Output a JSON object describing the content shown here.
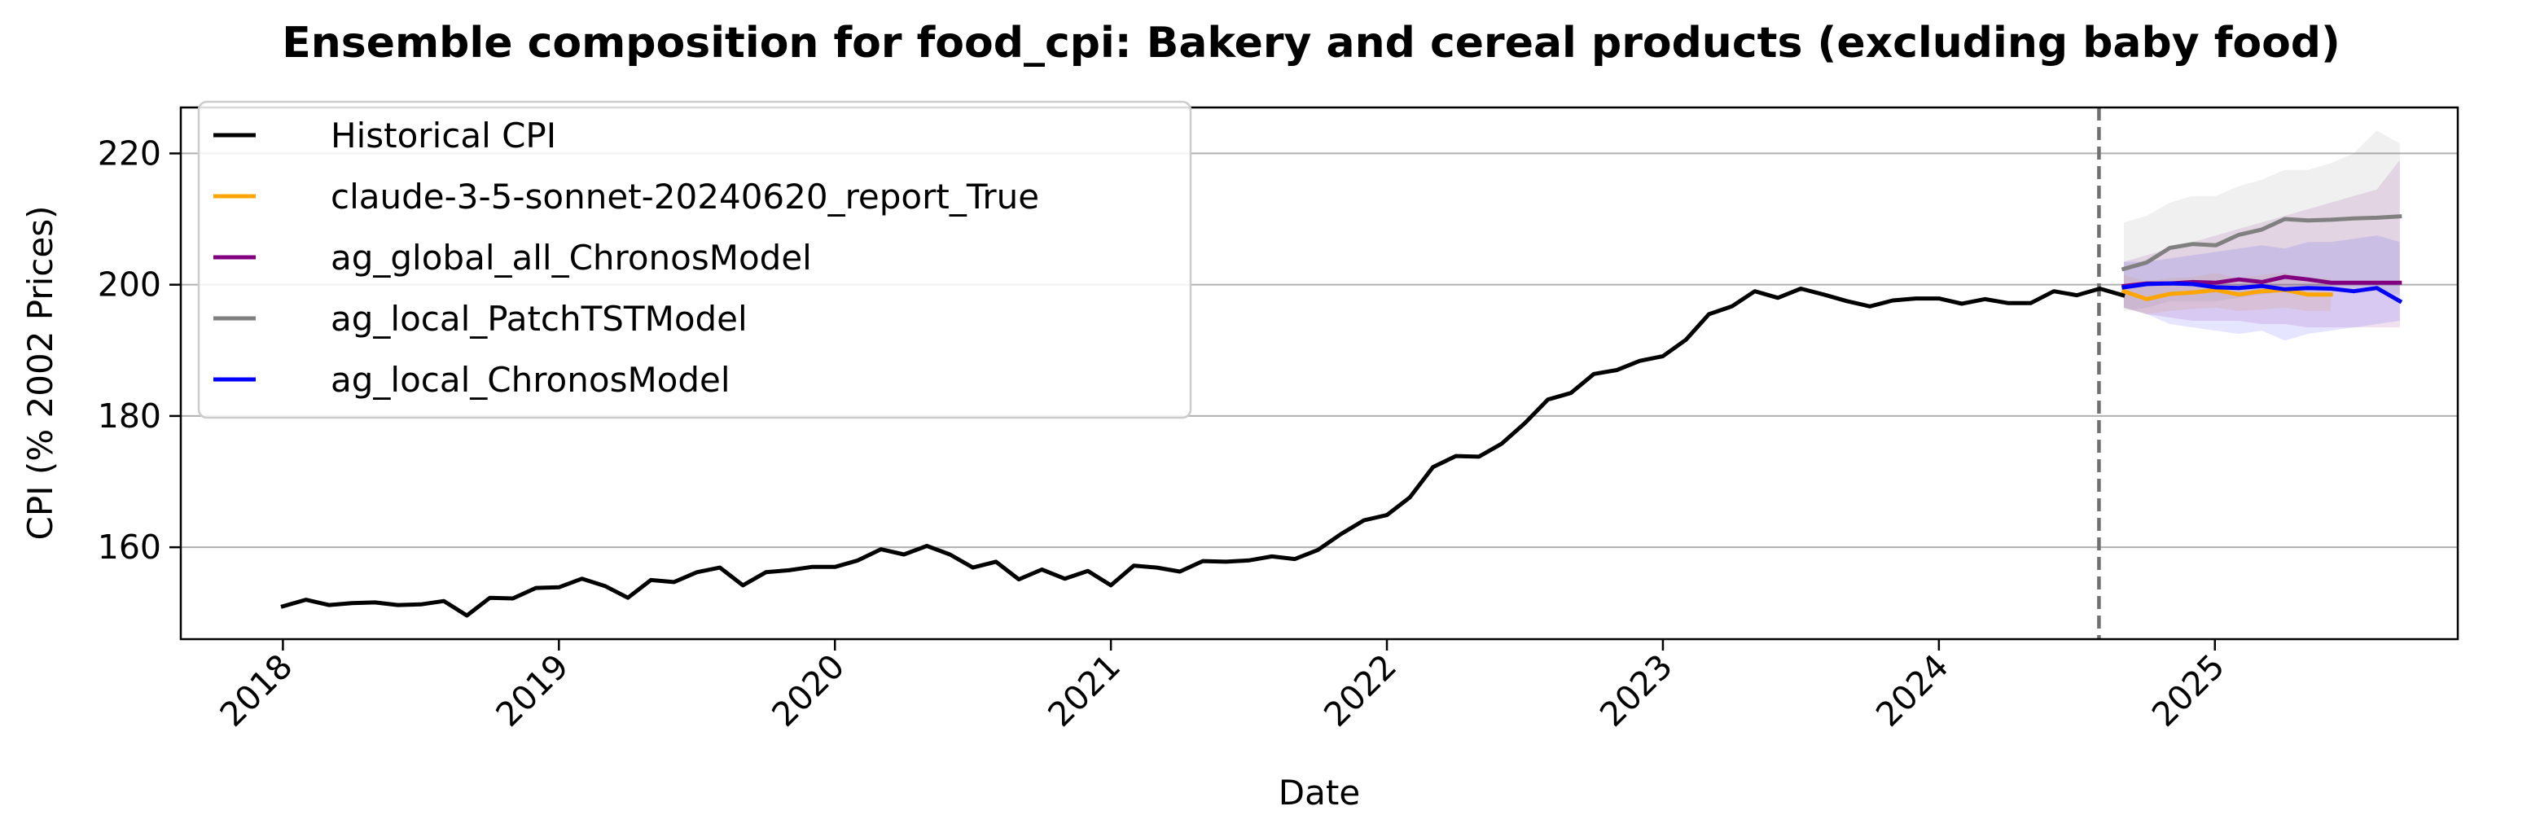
{
  "chart_data": {
    "type": "line",
    "title": "Ensemble composition for food_cpi: Bakery and cereal products (excluding baby food)",
    "xlabel": "Date",
    "ylabel": "CPI (% 2002 Prices)",
    "xlim": [
      2017.63,
      2025.88
    ],
    "ylim": [
      146.0,
      227.0
    ],
    "x_ticks": [
      2018,
      2019,
      2020,
      2021,
      2022,
      2023,
      2024,
      2025
    ],
    "x_tick_labels": [
      "2018",
      "2019",
      "2020",
      "2021",
      "2022",
      "2023",
      "2024",
      "2025"
    ],
    "y_ticks": [
      160,
      180,
      200,
      220
    ],
    "y_tick_labels": [
      "160",
      "180",
      "200",
      "220"
    ],
    "grid": "horizontal",
    "legend_location": "upper-left",
    "forecast_start": 2024.58,
    "series": [
      {
        "name": "Historical CPI",
        "color": "#000000",
        "x_start": 2018.0,
        "x_step": 0.08333,
        "values": [
          151.0,
          152.0,
          151.2,
          151.5,
          151.6,
          151.2,
          151.3,
          151.8,
          149.6,
          152.3,
          152.2,
          153.8,
          153.9,
          155.2,
          154.1,
          152.3,
          155.0,
          154.7,
          156.2,
          156.9,
          154.2,
          156.2,
          156.5,
          157.0,
          157.0,
          158.0,
          159.7,
          158.9,
          160.2,
          158.9,
          156.9,
          157.8,
          155.1,
          156.6,
          155.2,
          156.4,
          154.2,
          157.2,
          156.9,
          156.3,
          157.9,
          157.8,
          158.0,
          158.6,
          158.2,
          159.6,
          162.0,
          164.1,
          164.9,
          167.6,
          172.2,
          173.9,
          173.8,
          175.8,
          178.9,
          182.5,
          183.5,
          186.4,
          187.0,
          188.4,
          189.1,
          191.6,
          195.5,
          196.7,
          199.0,
          198.0,
          199.4,
          198.5,
          197.5,
          196.7,
          197.6,
          197.9,
          197.9,
          197.1,
          197.8,
          197.2,
          197.2,
          199.0,
          198.4,
          199.4,
          198.4
        ]
      },
      {
        "name": "claude-3-5-sonnet-20240620_report_True",
        "color": "#ffa500",
        "x_start": 2024.67,
        "x_step": 0.08333,
        "values": [
          199.0,
          197.8,
          198.6,
          198.8,
          199.2,
          198.5,
          199.0,
          199.2,
          198.5,
          198.5
        ],
        "band_lower": [
          196.5,
          195.5,
          196.0,
          196.3,
          196.5,
          196.0,
          196.2,
          196.5,
          196.0,
          196.0
        ],
        "band_upper": [
          201.5,
          200.5,
          201.0,
          201.2,
          201.8,
          201.0,
          201.5,
          201.8,
          201.0,
          201.0
        ]
      },
      {
        "name": "ag_global_all_ChronosModel",
        "color": "#800080",
        "x_start": 2024.67,
        "x_step": 0.08333,
        "values": [
          199.8,
          200.2,
          200.2,
          200.4,
          200.3,
          200.8,
          200.4,
          201.2,
          200.8,
          200.3,
          200.3,
          200.3,
          200.3
        ],
        "band_lower": [
          196.5,
          195.5,
          195.0,
          194.5,
          194.5,
          194.5,
          194.0,
          194.0,
          193.5,
          193.5,
          193.5,
          193.5,
          193.5
        ],
        "band_upper": [
          203.5,
          204.5,
          205.5,
          206.5,
          207.5,
          208.5,
          209.5,
          210.5,
          211.5,
          212.5,
          213.5,
          214.5,
          219.0
        ]
      },
      {
        "name": "ag_local_PatchTSTModel",
        "color": "#808080",
        "x_start": 2024.67,
        "x_step": 0.08333,
        "values": [
          202.4,
          203.4,
          205.6,
          206.2,
          206.0,
          207.6,
          208.4,
          210.0,
          209.8,
          209.9,
          210.1,
          210.2,
          210.4
        ],
        "band_lower": [
          196.0,
          196.5,
          197.5,
          197.5,
          197.5,
          198.0,
          198.5,
          199.0,
          199.0,
          199.0,
          199.0,
          199.0,
          198.5
        ],
        "band_upper": [
          209.5,
          210.5,
          212.5,
          213.5,
          213.5,
          215.0,
          216.0,
          217.5,
          217.5,
          218.5,
          220.0,
          223.5,
          221.5
        ]
      },
      {
        "name": "ag_local_ChronosModel",
        "color": "#0000ff",
        "x_start": 2024.67,
        "x_step": 0.08333,
        "values": [
          199.6,
          200.1,
          200.2,
          200.1,
          199.6,
          199.5,
          199.8,
          199.3,
          199.5,
          199.4,
          199.0,
          199.5,
          197.5
        ],
        "band_lower": [
          196.5,
          195.5,
          194.0,
          193.5,
          193.0,
          192.5,
          193.0,
          191.5,
          192.5,
          193.0,
          193.5,
          194.0,
          194.5
        ],
        "band_upper": [
          203.5,
          203.5,
          204.0,
          204.5,
          205.0,
          205.5,
          206.0,
          205.5,
          206.5,
          206.5,
          207.0,
          207.5,
          206.5
        ]
      }
    ]
  }
}
